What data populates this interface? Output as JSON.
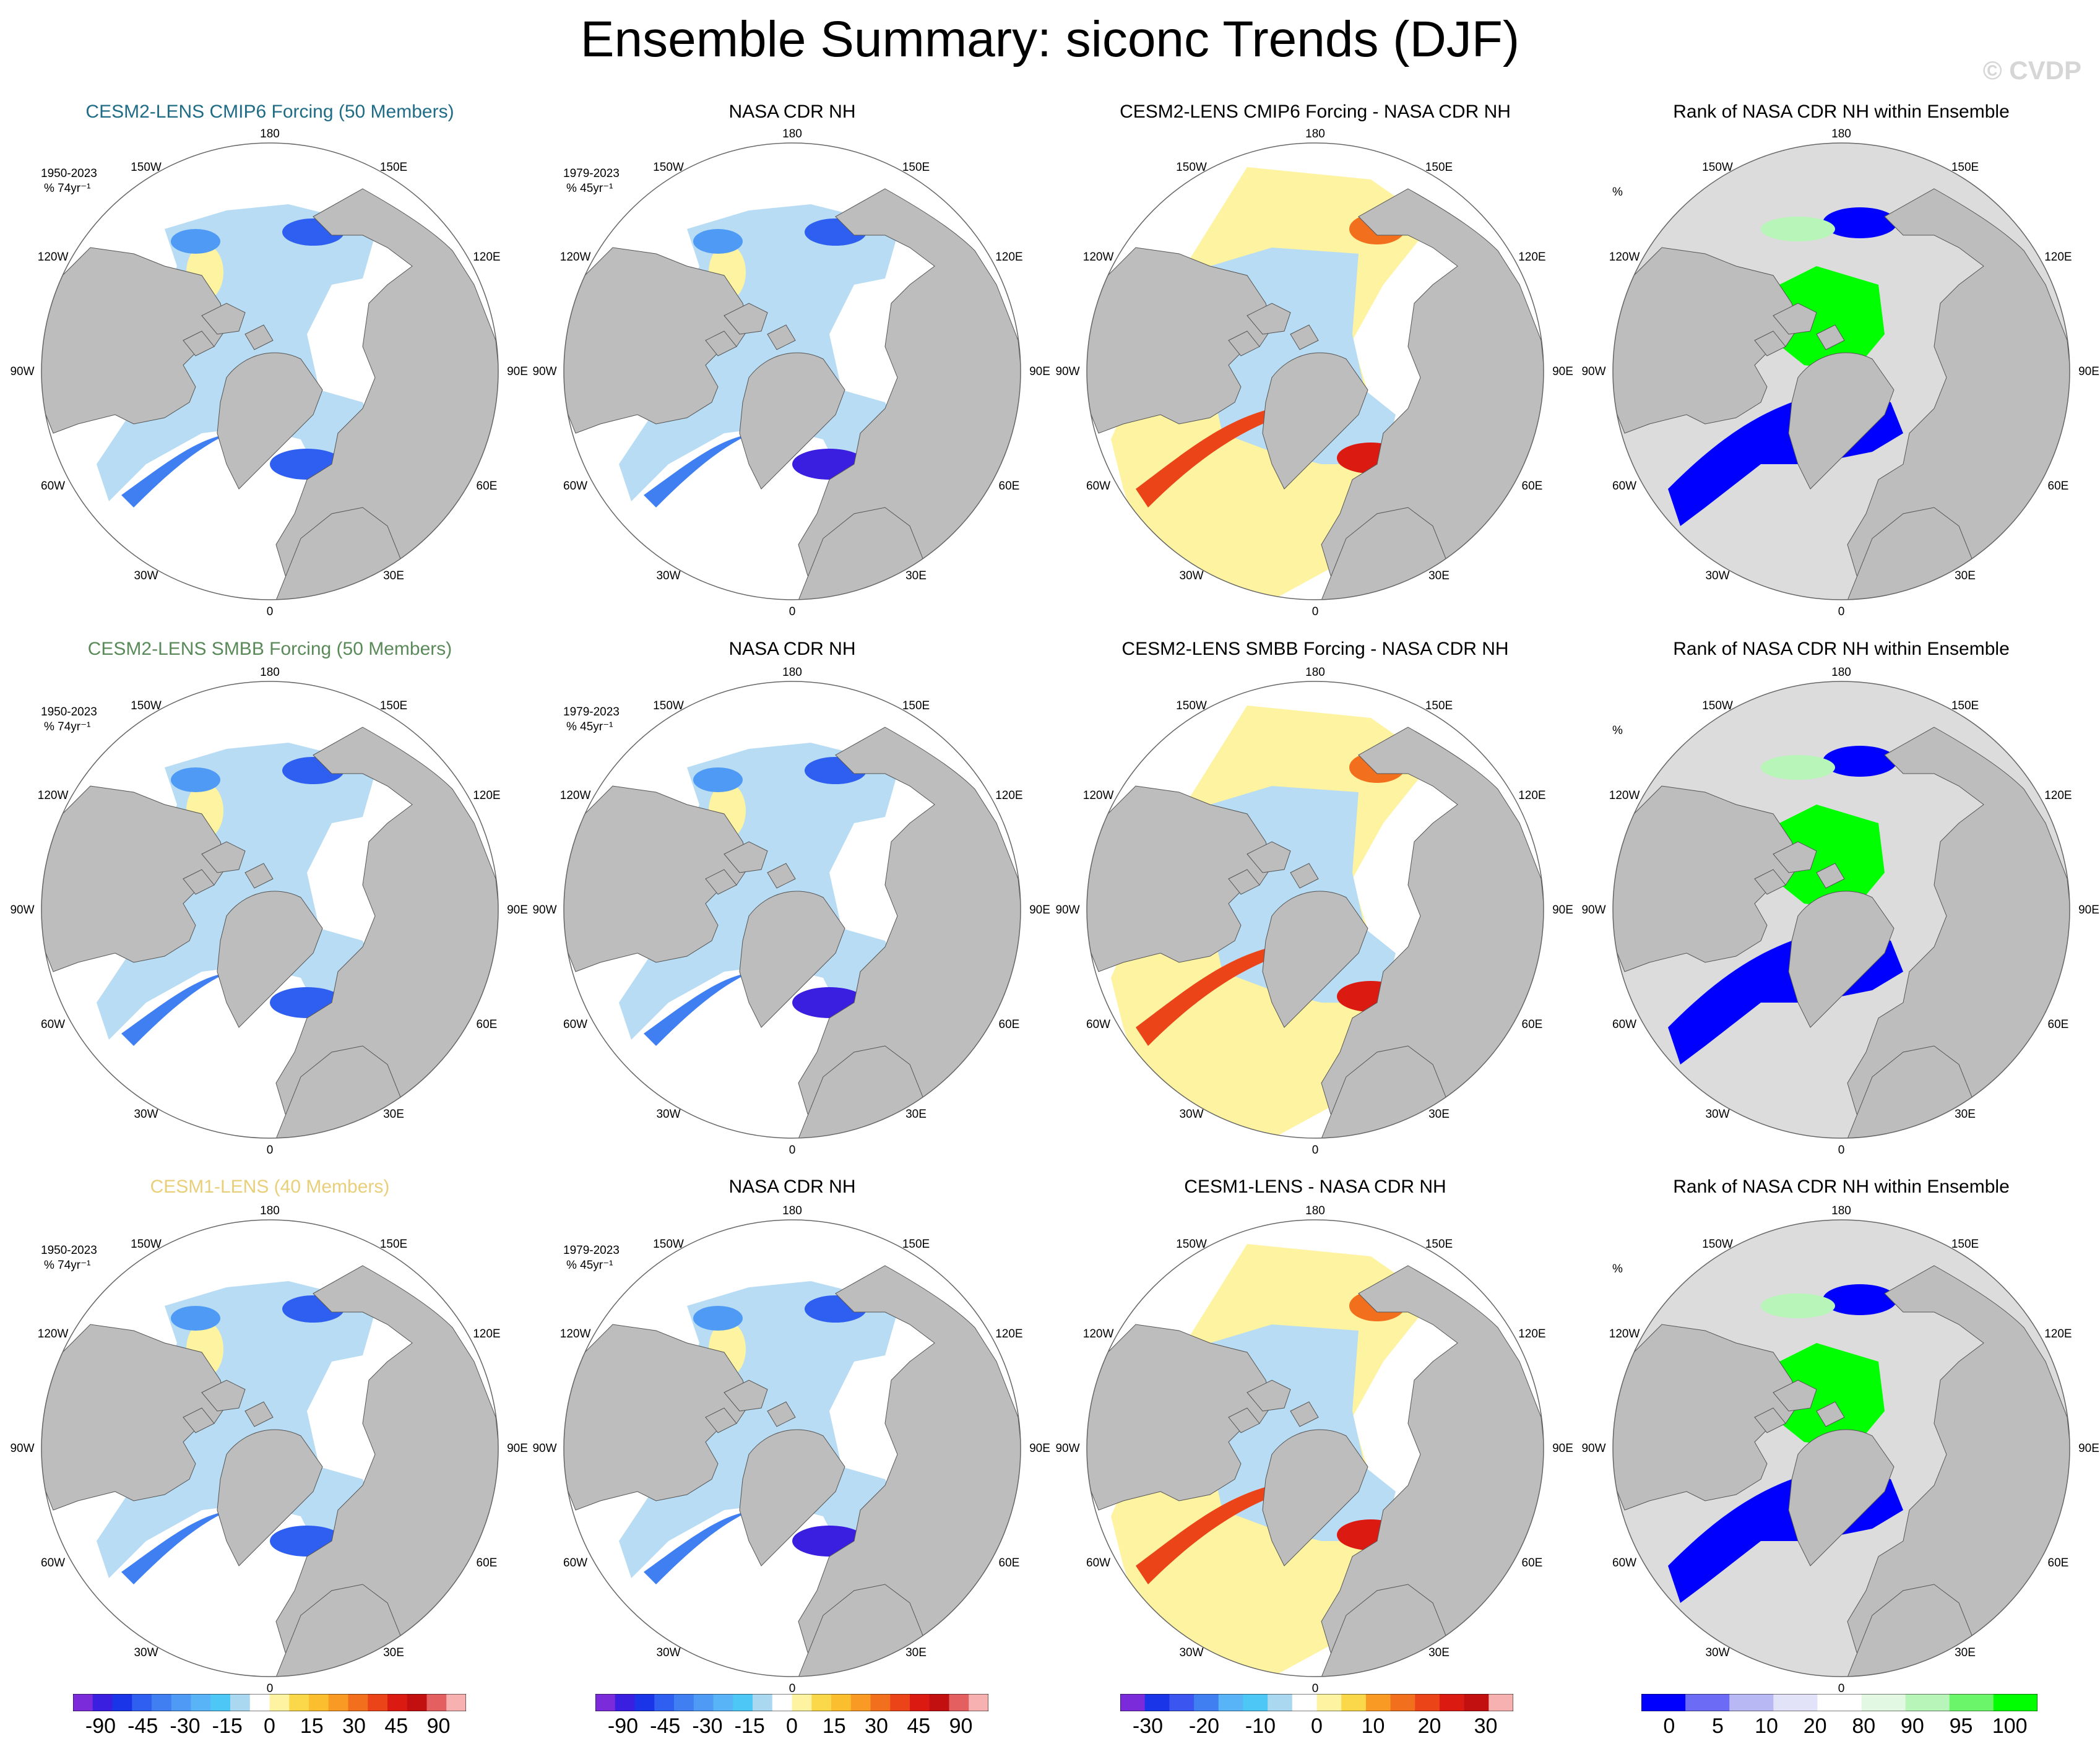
{
  "header": {
    "title": "Ensemble Summary: siconc Trends (DJF)",
    "watermark": "© CVDP"
  },
  "colors": {
    "row1_title": "#1f6c86",
    "row2_title": "#5a8a5a",
    "row3_title": "#e9cf7a",
    "ocean": "#ffffff",
    "land": "#bdbdbd",
    "rank_background": "#dcdcdc"
  },
  "rows": [
    {
      "model_title": "CESM2-LENS CMIP6 Forcing (50 Members)",
      "obs_title": "NASA CDR NH",
      "diff_title": "CESM2-LENS CMIP6 Forcing - NASA CDR NH",
      "rank_title": "Rank of NASA CDR NH within Ensemble",
      "model_period": "1950-2023",
      "model_units": "% 74yr⁻¹",
      "obs_period": "1979-2023",
      "obs_units": "% 45yr⁻¹",
      "rank_units": "%"
    },
    {
      "model_title": "CESM2-LENS SMBB Forcing (50 Members)",
      "obs_title": "NASA CDR NH",
      "diff_title": "CESM2-LENS SMBB Forcing - NASA CDR NH",
      "rank_title": "Rank of NASA CDR NH within Ensemble",
      "model_period": "1950-2023",
      "model_units": "% 74yr⁻¹",
      "obs_period": "1979-2023",
      "obs_units": "% 45yr⁻¹",
      "rank_units": "%"
    },
    {
      "model_title": "CESM1-LENS (40 Members)",
      "obs_title": "NASA CDR NH",
      "diff_title": "CESM1-LENS - NASA CDR NH",
      "rank_title": "Rank of NASA CDR NH within Ensemble",
      "model_period": "1950-2023",
      "model_units": "% 74yr⁻¹",
      "obs_period": "1979-2023",
      "obs_units": "% 45yr⁻¹",
      "rank_units": "%"
    }
  ],
  "map_labels": {
    "top": "180",
    "bottom": "0",
    "upper_left": "150W",
    "upper_right": "150E",
    "mid_upper_left": "120W",
    "mid_upper_right": "120E",
    "left": "90W",
    "right": "90E",
    "mid_lower_left": "60W",
    "mid_lower_right": "60E",
    "lower_left": "30W",
    "lower_right": "30E"
  },
  "colorbars": [
    {
      "name": "trend",
      "colors": [
        "#7b2bd9",
        "#3a1fe0",
        "#1a35e8",
        "#2f5ff0",
        "#3f7ff2",
        "#4f9af5",
        "#58b4f7",
        "#4dc7f6",
        "#a9d8f0",
        "#ffffff",
        "#fdf3a0",
        "#fbd84a",
        "#fbbe2e",
        "#f89a23",
        "#f2701d",
        "#eb4419",
        "#db1a12",
        "#c20f0f",
        "#e46060",
        "#f7b1b1"
      ],
      "labels": [
        "-90",
        "-45",
        "-30",
        "-15",
        "0",
        "15",
        "30",
        "45",
        "90"
      ]
    },
    {
      "name": "trend",
      "colors": [
        "#7b2bd9",
        "#3a1fe0",
        "#1a35e8",
        "#2f5ff0",
        "#3f7ff2",
        "#4f9af5",
        "#58b4f7",
        "#4dc7f6",
        "#a9d8f0",
        "#ffffff",
        "#fdf3a0",
        "#fbd84a",
        "#fbbe2e",
        "#f89a23",
        "#f2701d",
        "#eb4419",
        "#db1a12",
        "#c20f0f",
        "#e46060",
        "#f7b1b1"
      ],
      "labels": [
        "-90",
        "-45",
        "-30",
        "-15",
        "0",
        "15",
        "30",
        "45",
        "90"
      ]
    },
    {
      "name": "difference",
      "colors": [
        "#7b2bd9",
        "#1a35e8",
        "#3a55f0",
        "#3f7ff2",
        "#58b4f7",
        "#4dc7f6",
        "#a9d8f0",
        "#ffffff",
        "#fdf3a0",
        "#fbd84a",
        "#f89a23",
        "#f2701d",
        "#eb4419",
        "#db1a12",
        "#c20f0f",
        "#f7b1b1"
      ],
      "labels": [
        "-30",
        "-20",
        "-10",
        "0",
        "10",
        "20",
        "30"
      ]
    },
    {
      "name": "rank",
      "colors": [
        "#0000ff",
        "#6b6bf5",
        "#b8b8f5",
        "#e2e2f8",
        "#ffffff",
        "#e2f8e2",
        "#b8f5b8",
        "#6bf56b",
        "#00ff00"
      ],
      "labels": [
        "0",
        "5",
        "10",
        "20",
        "80",
        "90",
        "95",
        "100"
      ]
    }
  ]
}
